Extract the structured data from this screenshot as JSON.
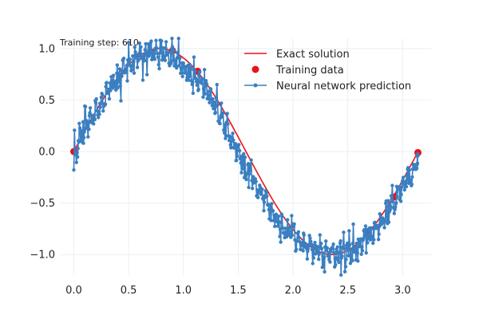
{
  "chart_data": {
    "type": "line",
    "title": "",
    "xlabel": "",
    "ylabel": "",
    "xlim": [
      -0.12,
      3.26
    ],
    "ylim": [
      -1.2,
      1.1
    ],
    "xticks": [
      0.0,
      0.5,
      1.0,
      1.5,
      2.0,
      2.5,
      3.0
    ],
    "xtick_labels": [
      "0.0",
      "0.5",
      "1.0",
      "1.5",
      "2.0",
      "2.5",
      "3.0"
    ],
    "yticks": [
      1.0,
      0.5,
      0.0,
      -0.5,
      -1.0
    ],
    "ytick_labels": [
      "1.0",
      "0.5",
      "0.0",
      "−0.5",
      "−1.0"
    ],
    "grid": true,
    "legend_position": "top-right",
    "annotation": "Training step: 610",
    "series": [
      {
        "name": "Exact solution",
        "kind": "line",
        "color": "#e8131c",
        "function": "sin(2x)",
        "x_range": [
          0.0,
          3.14159
        ]
      },
      {
        "name": "Training data",
        "kind": "scatter",
        "color": "#e8131c",
        "points": [
          [
            0.0,
            0.0
          ],
          [
            0.9,
            0.98
          ],
          [
            1.13,
            0.78
          ],
          [
            2.68,
            -0.79
          ],
          [
            2.93,
            -0.44
          ],
          [
            3.14,
            -0.01
          ]
        ]
      },
      {
        "name": "Neural network prediction",
        "kind": "line-marker",
        "color": "#3a7fc1",
        "noise": 0.08,
        "points": [
          [
            0.0,
            0.02
          ],
          [
            0.03,
            -0.04
          ],
          [
            0.05,
            0.21
          ],
          [
            0.08,
            0.09
          ],
          [
            0.1,
            0.26
          ],
          [
            0.13,
            0.2
          ],
          [
            0.15,
            0.38
          ],
          [
            0.18,
            0.28
          ],
          [
            0.2,
            0.45
          ],
          [
            0.23,
            0.36
          ],
          [
            0.25,
            0.52
          ],
          [
            0.28,
            0.44
          ],
          [
            0.3,
            0.63
          ],
          [
            0.33,
            0.55
          ],
          [
            0.35,
            0.71
          ],
          [
            0.38,
            0.61
          ],
          [
            0.4,
            0.8
          ],
          [
            0.43,
            0.69
          ],
          [
            0.45,
            0.88
          ],
          [
            0.48,
            0.74
          ],
          [
            0.5,
            0.92
          ],
          [
            0.53,
            0.8
          ],
          [
            0.55,
            0.96
          ],
          [
            0.58,
            0.85
          ],
          [
            0.6,
            1.0
          ],
          [
            0.63,
            0.88
          ],
          [
            0.65,
            0.98
          ],
          [
            0.68,
            0.92
          ],
          [
            0.7,
            1.02
          ],
          [
            0.73,
            0.9
          ],
          [
            0.75,
            1.01
          ],
          [
            0.78,
            0.87
          ],
          [
            0.8,
            1.0
          ],
          [
            0.83,
            0.91
          ],
          [
            0.85,
            0.98
          ],
          [
            0.88,
            0.88
          ],
          [
            0.9,
            0.95
          ],
          [
            0.93,
            0.84
          ],
          [
            0.95,
            0.92
          ],
          [
            0.98,
            0.8
          ],
          [
            1.0,
            0.9
          ],
          [
            1.03,
            0.72
          ],
          [
            1.05,
            0.84
          ],
          [
            1.08,
            0.7
          ],
          [
            1.1,
            0.78
          ],
          [
            1.13,
            0.62
          ],
          [
            1.15,
            0.73
          ],
          [
            1.18,
            0.55
          ],
          [
            1.2,
            0.66
          ],
          [
            1.23,
            0.48
          ],
          [
            1.25,
            0.58
          ],
          [
            1.28,
            0.4
          ],
          [
            1.3,
            0.49
          ],
          [
            1.33,
            0.28
          ],
          [
            1.35,
            0.38
          ],
          [
            1.38,
            0.18
          ],
          [
            1.4,
            0.28
          ],
          [
            1.43,
            0.08
          ],
          [
            1.45,
            0.17
          ],
          [
            1.48,
            -0.04
          ],
          [
            1.5,
            0.06
          ],
          [
            1.53,
            -0.14
          ],
          [
            1.55,
            -0.04
          ],
          [
            1.58,
            -0.25
          ],
          [
            1.6,
            -0.14
          ],
          [
            1.63,
            -0.35
          ],
          [
            1.65,
            -0.24
          ],
          [
            1.68,
            -0.45
          ],
          [
            1.7,
            -0.34
          ],
          [
            1.73,
            -0.52
          ],
          [
            1.75,
            -0.42
          ],
          [
            1.78,
            -0.62
          ],
          [
            1.8,
            -0.5
          ],
          [
            1.83,
            -0.68
          ],
          [
            1.85,
            -0.58
          ],
          [
            1.88,
            -0.76
          ],
          [
            1.9,
            -0.64
          ],
          [
            1.93,
            -0.82
          ],
          [
            1.95,
            -0.7
          ],
          [
            1.98,
            -0.86
          ],
          [
            2.0,
            -0.76
          ],
          [
            2.03,
            -0.93
          ],
          [
            2.05,
            -0.8
          ],
          [
            2.08,
            -0.96
          ],
          [
            2.1,
            -0.84
          ],
          [
            2.13,
            -0.98
          ],
          [
            2.15,
            -0.88
          ],
          [
            2.18,
            -1.02
          ],
          [
            2.2,
            -0.9
          ],
          [
            2.23,
            -1.03
          ],
          [
            2.25,
            -0.92
          ],
          [
            2.28,
            -1.05
          ],
          [
            2.3,
            -0.94
          ],
          [
            2.33,
            -1.06
          ],
          [
            2.35,
            -0.95
          ],
          [
            2.38,
            -1.08
          ],
          [
            2.4,
            -0.96
          ],
          [
            2.43,
            -1.06
          ],
          [
            2.45,
            -0.95
          ],
          [
            2.48,
            -1.04
          ],
          [
            2.5,
            -0.92
          ],
          [
            2.53,
            -1.03
          ],
          [
            2.55,
            -0.9
          ],
          [
            2.58,
            -1.0
          ],
          [
            2.6,
            -0.86
          ],
          [
            2.63,
            -0.95
          ],
          [
            2.65,
            -0.82
          ],
          [
            2.68,
            -0.9
          ],
          [
            2.7,
            -0.76
          ],
          [
            2.73,
            -0.86
          ],
          [
            2.75,
            -0.68
          ],
          [
            2.78,
            -0.78
          ],
          [
            2.8,
            -0.62
          ],
          [
            2.83,
            -0.7
          ],
          [
            2.85,
            -0.55
          ],
          [
            2.88,
            -0.62
          ],
          [
            2.9,
            -0.46
          ],
          [
            2.93,
            -0.55
          ],
          [
            2.95,
            -0.38
          ],
          [
            2.98,
            -0.45
          ],
          [
            3.0,
            -0.3
          ],
          [
            3.03,
            -0.36
          ],
          [
            3.05,
            -0.22
          ],
          [
            3.08,
            -0.28
          ],
          [
            3.1,
            -0.12
          ],
          [
            3.13,
            -0.1
          ],
          [
            3.14,
            -0.04
          ]
        ]
      }
    ]
  }
}
